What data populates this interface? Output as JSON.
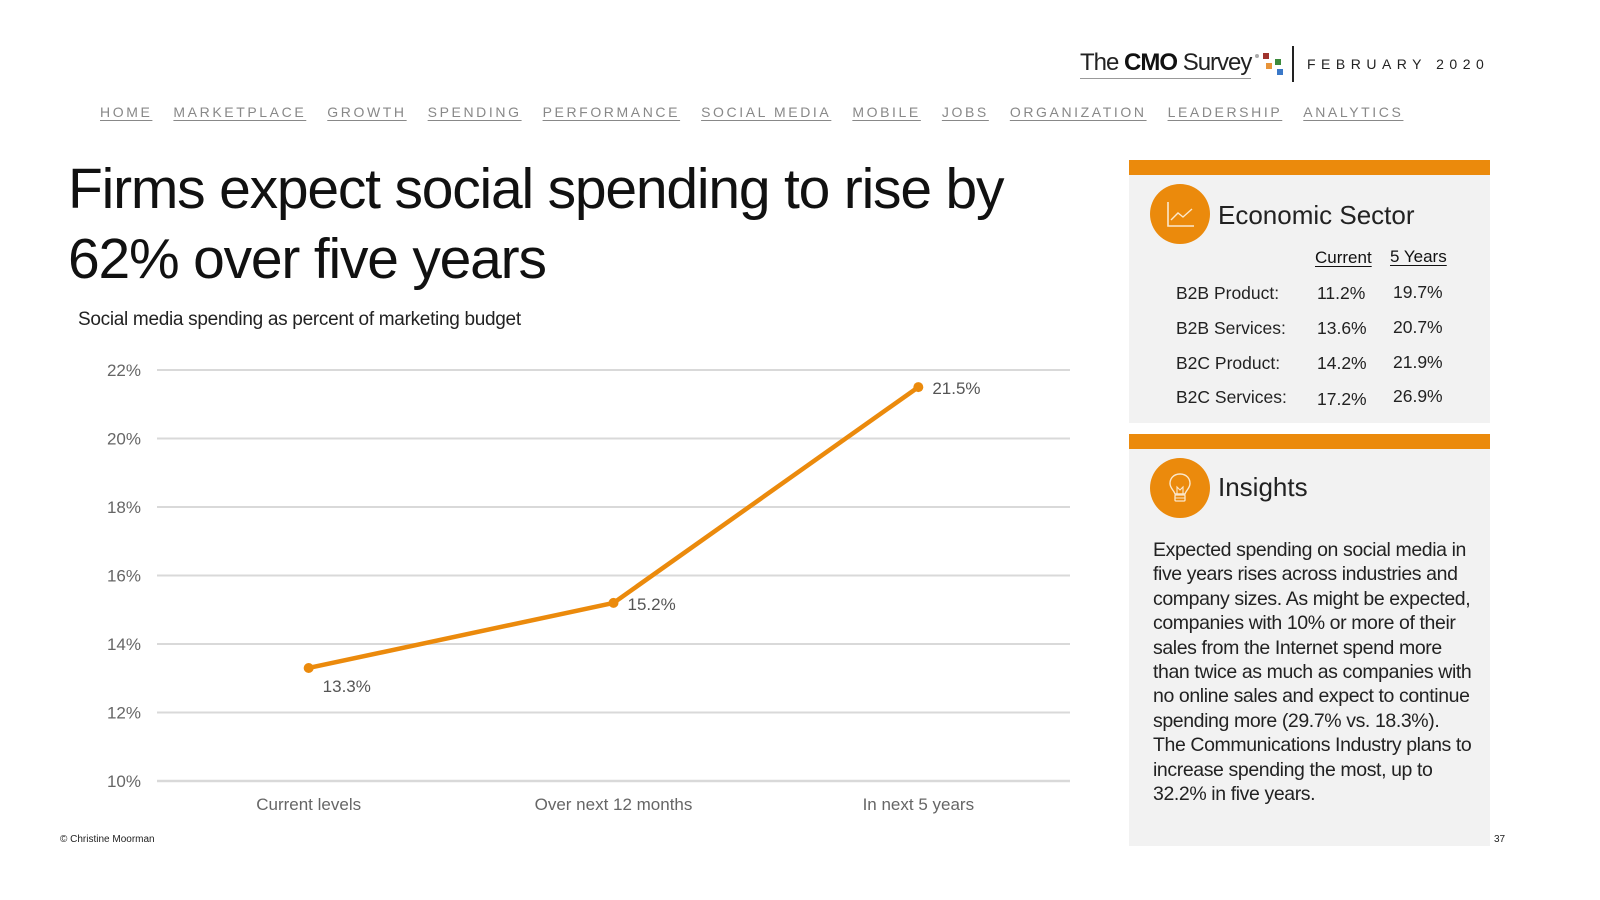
{
  "header": {
    "logo": {
      "prefix": "The ",
      "bold": "CMO",
      "suffix": " Survey"
    },
    "date": "FEBRUARY 2020"
  },
  "nav": {
    "items": [
      "HOME",
      "MARKETPLACE",
      "GROWTH",
      "SPENDING",
      "PERFORMANCE",
      "SOCIAL MEDIA",
      "MOBILE",
      "JOBS",
      "ORGANIZATION",
      "LEADERSHIP",
      "ANALYTICS"
    ]
  },
  "page": {
    "title": "Firms expect social spending to rise by 62% over five years",
    "subtitle": "Social media spending as percent of marketing budget"
  },
  "colors": {
    "accent": "#eb8a0c",
    "gridline": "#d9d9d9",
    "panel_bg": "#f2f2f2"
  },
  "chart_data": {
    "type": "line",
    "title": "Social media spending as percent of marketing budget",
    "xlabel": "",
    "ylabel": "",
    "categories": [
      "Current levels",
      "Over next 12 months",
      "In next 5 years"
    ],
    "series": [
      {
        "name": "Social media spending",
        "values": [
          13.3,
          15.2,
          21.5
        ],
        "labels": [
          "13.3%",
          "15.2%",
          "21.5%"
        ],
        "color": "#eb8a0c"
      }
    ],
    "ylim": [
      10,
      22
    ],
    "yticks": [
      10,
      12,
      14,
      16,
      18,
      20,
      22
    ],
    "ytick_labels": [
      "10%",
      "12%",
      "14%",
      "16%",
      "18%",
      "20%",
      "22%"
    ],
    "grid": true,
    "legend": "none"
  },
  "economic_sector": {
    "heading": "Economic Sector",
    "icon": "line-chart-icon",
    "columns": [
      "Current",
      "5 Years"
    ],
    "rows": [
      {
        "label": "B2B Product:",
        "current": "11.2%",
        "five_years": "19.7%"
      },
      {
        "label": "B2B Services:",
        "current": "13.6%",
        "five_years": "20.7%"
      },
      {
        "label": "B2C Product:",
        "current": "14.2%",
        "five_years": "21.9%"
      },
      {
        "label": "B2C Services:",
        "current": "17.2%",
        "five_years": "26.9%"
      }
    ]
  },
  "insights": {
    "heading": "Insights",
    "icon": "lightbulb-icon",
    "text": "Expected spending on social media in five years rises across industries and company sizes. As might be expected, companies with 10% or more of their sales from the Internet spend more than twice as much as companies with no online sales and expect to continue spending more (29.7% vs. 18.3%). The Communications Industry plans to increase spending the most, up to 32.2% in five years."
  },
  "footer": {
    "copyright": "© Christine Moorman",
    "page_number": "37"
  }
}
